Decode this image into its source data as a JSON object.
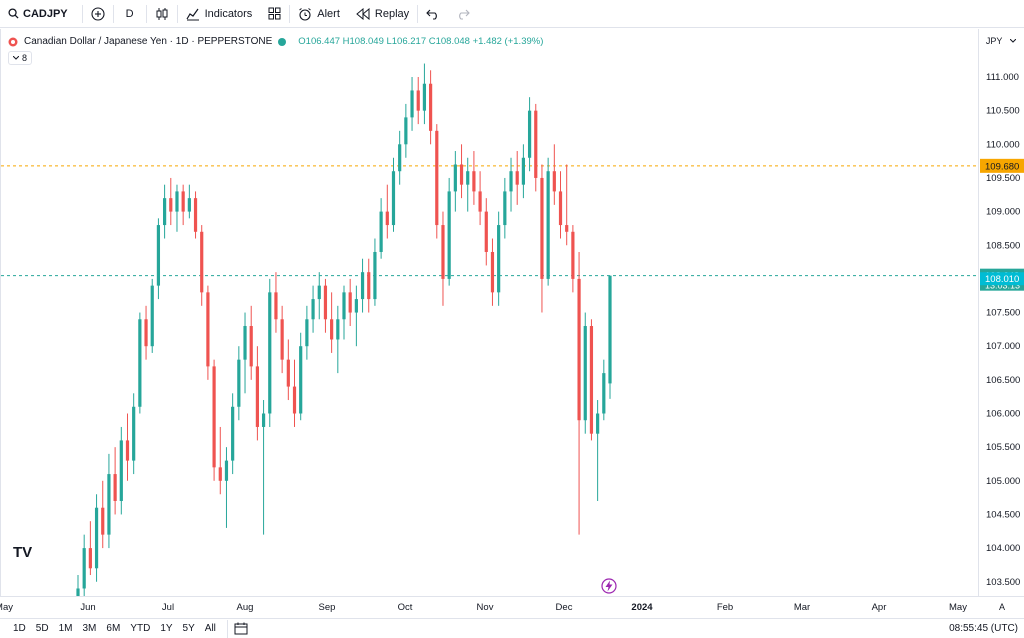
{
  "toolbar": {
    "symbol": "CADJPY",
    "interval": "D",
    "indicators_label": "Indicators",
    "alert_label": "Alert",
    "replay_label": "Replay"
  },
  "legend": {
    "title": "Canadian Dollar / Japanese Yen · 1D · PEPPERSTONE",
    "ohlc": "O106.447 H108.049 L106.217 C108.048 +1.482 (+1.39%)",
    "indicator_count": "8"
  },
  "price_axis": {
    "currency": "JPY",
    "ticks": [
      "111.000",
      "110.500",
      "110.000",
      "109.500",
      "109.000",
      "108.500",
      "108.000",
      "107.500",
      "107.000",
      "106.500",
      "106.000",
      "105.500",
      "105.000",
      "104.500",
      "104.000",
      "103.500"
    ],
    "alert_price": "109.680",
    "last_price": "108.048",
    "countdown": "13:03:13",
    "bid_price": "108.010"
  },
  "time_axis": {
    "ticks": [
      "May",
      "Jun",
      "Jul",
      "Aug",
      "Sep",
      "Oct",
      "Nov",
      "Dec",
      "2024",
      "Feb",
      "Mar",
      "Apr",
      "May"
    ]
  },
  "bottom": {
    "ranges": [
      "1D",
      "5D",
      "1M",
      "3M",
      "6M",
      "YTD",
      "1Y",
      "5Y",
      "All"
    ],
    "clock": "08:55:45 (UTC)"
  },
  "colors": {
    "up": "#26a69a",
    "down": "#ef5350",
    "alert_line": "#f7a600",
    "price_line": "#26a69a",
    "bid_label": "#00bcd4"
  },
  "chart_data": {
    "type": "candlestick",
    "symbol": "CADJPY",
    "ylim": [
      103.3,
      111.35
    ],
    "series": [
      {
        "d": "Jun",
        "o": 103.0,
        "h": 103.6,
        "l": 102.8,
        "c": 103.4
      },
      {
        "d": "Jun",
        "o": 103.4,
        "h": 104.2,
        "l": 103.2,
        "c": 104.0
      },
      {
        "d": "Jun",
        "o": 104.0,
        "h": 104.4,
        "l": 103.6,
        "c": 103.7
      },
      {
        "d": "Jun",
        "o": 103.7,
        "h": 104.8,
        "l": 103.5,
        "c": 104.6
      },
      {
        "d": "Jun",
        "o": 104.6,
        "h": 105.0,
        "l": 104.0,
        "c": 104.2
      },
      {
        "d": "Jun",
        "o": 104.2,
        "h": 105.4,
        "l": 104.0,
        "c": 105.1
      },
      {
        "d": "Jun",
        "o": 105.1,
        "h": 105.5,
        "l": 104.5,
        "c": 104.7
      },
      {
        "d": "Jun",
        "o": 104.7,
        "h": 105.8,
        "l": 104.5,
        "c": 105.6
      },
      {
        "d": "Jun",
        "o": 105.6,
        "h": 106.0,
        "l": 105.0,
        "c": 105.3
      },
      {
        "d": "Jun",
        "o": 105.3,
        "h": 106.3,
        "l": 105.1,
        "c": 106.1
      },
      {
        "d": "Jun",
        "o": 106.1,
        "h": 107.5,
        "l": 106.0,
        "c": 107.4
      },
      {
        "d": "Jun",
        "o": 107.4,
        "h": 107.6,
        "l": 106.8,
        "c": 107.0
      },
      {
        "d": "Jun",
        "o": 107.0,
        "h": 108.0,
        "l": 106.9,
        "c": 107.9
      },
      {
        "d": "Jun",
        "o": 107.9,
        "h": 108.9,
        "l": 107.7,
        "c": 108.8
      },
      {
        "d": "Jun",
        "o": 108.8,
        "h": 109.4,
        "l": 108.6,
        "c": 109.2
      },
      {
        "d": "Jun",
        "o": 109.2,
        "h": 109.5,
        "l": 108.8,
        "c": 109.0
      },
      {
        "d": "Jul",
        "o": 109.0,
        "h": 109.4,
        "l": 108.7,
        "c": 109.3
      },
      {
        "d": "Jul",
        "o": 109.3,
        "h": 109.4,
        "l": 108.8,
        "c": 109.0
      },
      {
        "d": "Jul",
        "o": 109.0,
        "h": 109.4,
        "l": 108.9,
        "c": 109.2
      },
      {
        "d": "Jul",
        "o": 109.2,
        "h": 109.3,
        "l": 108.6,
        "c": 108.7
      },
      {
        "d": "Jul",
        "o": 108.7,
        "h": 108.8,
        "l": 107.6,
        "c": 107.8
      },
      {
        "d": "Jul",
        "o": 107.8,
        "h": 107.9,
        "l": 106.5,
        "c": 106.7
      },
      {
        "d": "Jul",
        "o": 106.7,
        "h": 106.8,
        "l": 105.0,
        "c": 105.2
      },
      {
        "d": "Jul",
        "o": 105.2,
        "h": 105.8,
        "l": 104.8,
        "c": 105.0
      },
      {
        "d": "Jul",
        "o": 105.0,
        "h": 105.5,
        "l": 104.3,
        "c": 105.3
      },
      {
        "d": "Jul",
        "o": 105.3,
        "h": 106.3,
        "l": 105.1,
        "c": 106.1
      },
      {
        "d": "Jul",
        "o": 106.1,
        "h": 107.0,
        "l": 105.9,
        "c": 106.8
      },
      {
        "d": "Jul",
        "o": 106.8,
        "h": 107.5,
        "l": 106.3,
        "c": 107.3
      },
      {
        "d": "Jul",
        "o": 107.3,
        "h": 107.6,
        "l": 106.5,
        "c": 106.7
      },
      {
        "d": "Jul",
        "o": 106.7,
        "h": 107.0,
        "l": 105.6,
        "c": 105.8
      },
      {
        "d": "Jul",
        "o": 105.8,
        "h": 106.2,
        "l": 104.2,
        "c": 106.0
      },
      {
        "d": "Aug",
        "o": 106.0,
        "h": 108.0,
        "l": 105.8,
        "c": 107.8
      },
      {
        "d": "Aug",
        "o": 107.8,
        "h": 108.1,
        "l": 107.2,
        "c": 107.4
      },
      {
        "d": "Aug",
        "o": 107.4,
        "h": 107.6,
        "l": 106.6,
        "c": 106.8
      },
      {
        "d": "Aug",
        "o": 106.8,
        "h": 107.1,
        "l": 106.2,
        "c": 106.4
      },
      {
        "d": "Aug",
        "o": 106.4,
        "h": 106.8,
        "l": 105.8,
        "c": 106.0
      },
      {
        "d": "Aug",
        "o": 106.0,
        "h": 107.2,
        "l": 105.9,
        "c": 107.0
      },
      {
        "d": "Aug",
        "o": 107.0,
        "h": 107.6,
        "l": 106.8,
        "c": 107.4
      },
      {
        "d": "Aug",
        "o": 107.4,
        "h": 107.9,
        "l": 107.2,
        "c": 107.7
      },
      {
        "d": "Aug",
        "o": 107.7,
        "h": 108.1,
        "l": 107.4,
        "c": 107.9
      },
      {
        "d": "Aug",
        "o": 107.9,
        "h": 108.0,
        "l": 107.2,
        "c": 107.4
      },
      {
        "d": "Aug",
        "o": 107.4,
        "h": 107.8,
        "l": 106.9,
        "c": 107.1
      },
      {
        "d": "Aug",
        "o": 107.1,
        "h": 107.6,
        "l": 106.6,
        "c": 107.4
      },
      {
        "d": "Aug",
        "o": 107.4,
        "h": 107.9,
        "l": 107.1,
        "c": 107.8
      },
      {
        "d": "Aug",
        "o": 107.8,
        "h": 108.0,
        "l": 107.3,
        "c": 107.5
      },
      {
        "d": "Aug",
        "o": 107.5,
        "h": 107.9,
        "l": 107.0,
        "c": 107.7
      },
      {
        "d": "Aug",
        "o": 107.7,
        "h": 108.3,
        "l": 107.5,
        "c": 108.1
      },
      {
        "d": "Sep",
        "o": 108.1,
        "h": 108.3,
        "l": 107.5,
        "c": 107.7
      },
      {
        "d": "Sep",
        "o": 107.7,
        "h": 108.6,
        "l": 107.6,
        "c": 108.4
      },
      {
        "d": "Sep",
        "o": 108.4,
        "h": 109.2,
        "l": 108.3,
        "c": 109.0
      },
      {
        "d": "Sep",
        "o": 109.0,
        "h": 109.4,
        "l": 108.6,
        "c": 108.8
      },
      {
        "d": "Sep",
        "o": 108.8,
        "h": 109.8,
        "l": 108.7,
        "c": 109.6
      },
      {
        "d": "Sep",
        "o": 109.6,
        "h": 110.2,
        "l": 109.4,
        "c": 110.0
      },
      {
        "d": "Sep",
        "o": 110.0,
        "h": 110.6,
        "l": 109.8,
        "c": 110.4
      },
      {
        "d": "Sep",
        "o": 110.4,
        "h": 111.0,
        "l": 110.2,
        "c": 110.8
      },
      {
        "d": "Sep",
        "o": 110.8,
        "h": 111.0,
        "l": 110.3,
        "c": 110.5
      },
      {
        "d": "Sep",
        "o": 110.5,
        "h": 111.2,
        "l": 110.3,
        "c": 110.9
      },
      {
        "d": "Oct",
        "o": 110.9,
        "h": 111.1,
        "l": 110.0,
        "c": 110.2
      },
      {
        "d": "Oct",
        "o": 110.2,
        "h": 110.3,
        "l": 108.6,
        "c": 108.8
      },
      {
        "d": "Oct",
        "o": 108.8,
        "h": 109.0,
        "l": 107.6,
        "c": 108.0
      },
      {
        "d": "Oct",
        "o": 108.0,
        "h": 109.5,
        "l": 107.9,
        "c": 109.3
      },
      {
        "d": "Oct",
        "o": 109.3,
        "h": 109.9,
        "l": 109.0,
        "c": 109.7
      },
      {
        "d": "Oct",
        "o": 109.7,
        "h": 110.0,
        "l": 109.2,
        "c": 109.4
      },
      {
        "d": "Oct",
        "o": 109.4,
        "h": 109.8,
        "l": 109.0,
        "c": 109.6
      },
      {
        "d": "Oct",
        "o": 109.6,
        "h": 109.9,
        "l": 109.1,
        "c": 109.3
      },
      {
        "d": "Oct",
        "o": 109.3,
        "h": 109.6,
        "l": 108.8,
        "c": 109.0
      },
      {
        "d": "Oct",
        "o": 109.0,
        "h": 109.2,
        "l": 108.2,
        "c": 108.4
      },
      {
        "d": "Oct",
        "o": 108.4,
        "h": 108.6,
        "l": 107.6,
        "c": 107.8
      },
      {
        "d": "Nov",
        "o": 107.8,
        "h": 109.0,
        "l": 107.6,
        "c": 108.8
      },
      {
        "d": "Nov",
        "o": 108.8,
        "h": 109.5,
        "l": 108.6,
        "c": 109.3
      },
      {
        "d": "Nov",
        "o": 109.3,
        "h": 109.8,
        "l": 109.0,
        "c": 109.6
      },
      {
        "d": "Nov",
        "o": 109.6,
        "h": 109.9,
        "l": 109.1,
        "c": 109.4
      },
      {
        "d": "Nov",
        "o": 109.4,
        "h": 110.0,
        "l": 109.2,
        "c": 109.8
      },
      {
        "d": "Nov",
        "o": 109.8,
        "h": 110.7,
        "l": 109.6,
        "c": 110.5
      },
      {
        "d": "Nov",
        "o": 110.5,
        "h": 110.6,
        "l": 109.3,
        "c": 109.5
      },
      {
        "d": "Nov",
        "o": 109.5,
        "h": 109.7,
        "l": 107.5,
        "c": 108.0
      },
      {
        "d": "Nov",
        "o": 108.0,
        "h": 109.8,
        "l": 107.9,
        "c": 109.6
      },
      {
        "d": "Nov",
        "o": 109.6,
        "h": 110.0,
        "l": 109.1,
        "c": 109.3
      },
      {
        "d": "Dec",
        "o": 109.3,
        "h": 109.6,
        "l": 108.6,
        "c": 108.8
      },
      {
        "d": "Dec",
        "o": 108.8,
        "h": 109.7,
        "l": 108.5,
        "c": 108.7
      },
      {
        "d": "Dec",
        "o": 108.7,
        "h": 108.8,
        "l": 107.8,
        "c": 108.0
      },
      {
        "d": "Dec",
        "o": 108.0,
        "h": 108.4,
        "l": 104.2,
        "c": 105.9
      },
      {
        "d": "Dec",
        "o": 105.9,
        "h": 107.5,
        "l": 105.7,
        "c": 107.3
      },
      {
        "d": "Dec",
        "o": 107.3,
        "h": 107.4,
        "l": 105.6,
        "c": 105.7
      },
      {
        "d": "Dec",
        "o": 105.7,
        "h": 106.2,
        "l": 104.7,
        "c": 106.0
      },
      {
        "d": "Dec",
        "o": 106.0,
        "h": 106.8,
        "l": 105.9,
        "c": 106.6
      },
      {
        "d": "Dec",
        "o": 106.447,
        "h": 108.049,
        "l": 106.217,
        "c": 108.048
      }
    ]
  }
}
